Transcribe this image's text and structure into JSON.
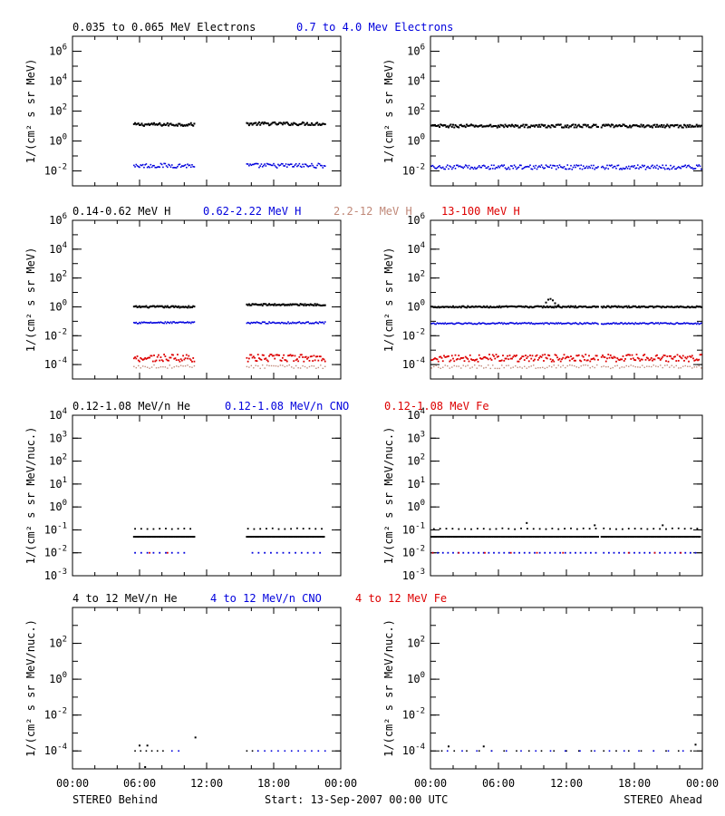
{
  "colors": {
    "black": "#000000",
    "blue": "#0000dd",
    "tan": "#c08878",
    "red": "#dd0000"
  },
  "footer": {
    "left": "STEREO Behind",
    "center": "Start: 13-Sep-2007 00:00 UTC",
    "right": "STEREO Ahead"
  },
  "x_ticks": [
    "00:00",
    "06:00",
    "12:00",
    "18:00",
    "00:00"
  ],
  "chart_data": [
    {
      "type": "scatter",
      "row": 0,
      "ylabel": "1/(cm² s sr MeV)",
      "ylim_log10": [
        -3,
        7
      ],
      "y_tick_exponents": [
        -2,
        0,
        2,
        4,
        6
      ],
      "legend": [
        {
          "text": "0.035 to 0.065 MeV Electrons",
          "color": "black"
        },
        {
          "text": "0.7 to 4.0 Mev Electrons",
          "color": "blue"
        }
      ],
      "panels": [
        {
          "name": "STEREO Behind",
          "series": [
            {
              "color": "black",
              "segments": [
                [
                  5.5,
                  10.9,
                  1.1
                ],
                [
                  15.6,
                  22.6,
                  1.15
                ]
              ],
              "jitter": 0.1,
              "step": 0.1,
              "size": 2
            },
            {
              "color": "blue",
              "segments": [
                [
                  5.5,
                  10.9,
                  -1.65
                ],
                [
                  15.6,
                  22.6,
                  -1.65
                ]
              ],
              "jitter": 0.15,
              "step": 0.1,
              "size": 1.6
            }
          ]
        },
        {
          "name": "STEREO Ahead",
          "series": [
            {
              "color": "black",
              "segments": [
                [
                  0.1,
                  14.8,
                  1.0
                ],
                [
                  15.1,
                  23.9,
                  1.0
                ]
              ],
              "jitter": 0.1,
              "step": 0.1,
              "size": 2
            },
            {
              "color": "blue",
              "segments": [
                [
                  0.1,
                  14.8,
                  -1.75
                ],
                [
                  15.1,
                  23.9,
                  -1.75
                ]
              ],
              "jitter": 0.15,
              "step": 0.1,
              "size": 1.6
            }
          ]
        }
      ]
    },
    {
      "type": "scatter",
      "row": 1,
      "ylabel": "1/(cm² s sr MeV)",
      "ylim_log10": [
        -5,
        6
      ],
      "y_tick_exponents": [
        -4,
        -2,
        0,
        2,
        4,
        6
      ],
      "legend": [
        {
          "text": "0.14-0.62 MeV H",
          "color": "black"
        },
        {
          "text": "0.62-2.22 MeV H",
          "color": "blue"
        },
        {
          "text": "2.2-12 MeV H",
          "color": "tan"
        },
        {
          "text": "13-100 MeV H",
          "color": "red"
        }
      ],
      "panels": [
        {
          "name": "STEREO Behind",
          "series": [
            {
              "color": "black",
              "segments": [
                [
                  5.5,
                  10.9,
                  0.0
                ],
                [
                  15.6,
                  22.6,
                  0.15
                ]
              ],
              "jitter": 0.06,
              "step": 0.1,
              "size": 2
            },
            {
              "color": "blue",
              "segments": [
                [
                  5.5,
                  10.9,
                  -1.1
                ],
                [
                  15.6,
                  22.6,
                  -1.1
                ]
              ],
              "jitter": 0.06,
              "step": 0.1,
              "size": 1.6
            },
            {
              "color": "tan",
              "segments": [
                [
                  5.5,
                  10.9,
                  -4.15
                ],
                [
                  15.6,
                  22.6,
                  -4.15
                ]
              ],
              "jitter": 0.12,
              "step": 0.2,
              "size": 1.4
            },
            {
              "color": "red",
              "segments": [
                [
                  5.5,
                  10.9,
                  -3.55
                ],
                [
                  15.6,
                  22.6,
                  -3.55
                ]
              ],
              "jitter": 0.25,
              "step": 0.1,
              "size": 1.8
            }
          ]
        },
        {
          "name": "STEREO Ahead",
          "series": [
            {
              "color": "black",
              "segments": [
                [
                  0.1,
                  14.8,
                  0.0
                ],
                [
                  15.1,
                  23.9,
                  0.0
                ]
              ],
              "jitter": 0.05,
              "step": 0.1,
              "size": 2
            },
            {
              "color": "blue",
              "segments": [
                [
                  0.1,
                  14.8,
                  -1.15
                ],
                [
                  15.1,
                  23.9,
                  -1.15
                ]
              ],
              "jitter": 0.05,
              "step": 0.1,
              "size": 1.6
            },
            {
              "color": "tan",
              "segments": [
                [
                  0.1,
                  14.8,
                  -4.15
                ],
                [
                  15.1,
                  23.9,
                  -4.15
                ]
              ],
              "jitter": 0.12,
              "step": 0.2,
              "size": 1.4
            },
            {
              "color": "red",
              "segments": [
                [
                  0.1,
                  14.8,
                  -3.55
                ],
                [
                  15.1,
                  23.9,
                  -3.55
                ]
              ],
              "jitter": 0.25,
              "step": 0.1,
              "size": 1.8
            }
          ],
          "extra_points": [
            {
              "color": "black",
              "x": 10.2,
              "y": 0.3
            },
            {
              "color": "black",
              "x": 10.4,
              "y": 0.5
            },
            {
              "color": "black",
              "x": 10.6,
              "y": 0.55
            },
            {
              "color": "black",
              "x": 10.8,
              "y": 0.45
            },
            {
              "color": "black",
              "x": 11.0,
              "y": 0.25
            },
            {
              "color": "black",
              "x": 11.3,
              "y": 0.12
            }
          ]
        }
      ]
    },
    {
      "type": "scatter",
      "row": 2,
      "ylabel": "1/(cm² s sr MeV/nuc.)",
      "ylim_log10": [
        -3,
        4
      ],
      "y_tick_exponents": [
        -3,
        -2,
        -1,
        0,
        1,
        2,
        3,
        4
      ],
      "legend": [
        {
          "text": "0.12-1.08 MeV/n He",
          "color": "black"
        },
        {
          "text": "0.12-1.08 MeV/n CNO",
          "color": "blue"
        },
        {
          "text": "0.12-1.08 MeV Fe",
          "color": "red"
        }
      ],
      "panels": [
        {
          "name": "STEREO Behind",
          "series": [
            {
              "color": "black",
              "segments": [
                [
                  5.5,
                  10.9,
                  -1.3
                ],
                [
                  15.6,
                  22.6,
                  -1.3
                ]
              ],
              "jitter": 0.0,
              "step": 0.15,
              "size": 2
            },
            {
              "color": "black",
              "segments": [
                [
                  5.6,
                  10.8,
                  -0.95
                ],
                [
                  15.7,
                  22.4,
                  -0.95
                ]
              ],
              "jitter": 0.02,
              "step": 0.55,
              "size": 1.8
            },
            {
              "color": "blue",
              "segments": [
                [
                  5.6,
                  10.4,
                  -2.0
                ],
                [
                  16.1,
                  22.6,
                  -2.0
                ]
              ],
              "jitter": 0.0,
              "step": 0.55,
              "size": 1.8
            },
            {
              "color": "red",
              "segments": [
                [
                  6.9,
                  8.6,
                  -2.0
                ]
              ],
              "jitter": 0.0,
              "step": 1.6,
              "size": 1.8
            }
          ]
        },
        {
          "name": "STEREO Ahead",
          "series": [
            {
              "color": "black",
              "segments": [
                [
                  0.1,
                  14.8,
                  -1.3
                ],
                [
                  15.1,
                  23.9,
                  -1.3
                ]
              ],
              "jitter": 0.0,
              "step": 0.15,
              "size": 2
            },
            {
              "color": "black",
              "segments": [
                [
                  0.3,
                  14.8,
                  -0.95
                ],
                [
                  15.3,
                  23.6,
                  -0.95
                ]
              ],
              "jitter": 0.02,
              "step": 0.55,
              "size": 1.8
            },
            {
              "color": "blue",
              "segments": [
                [
                  0.2,
                  14.8,
                  -2.0
                ],
                [
                  15.3,
                  23.6,
                  -2.0
                ]
              ],
              "jitter": 0.0,
              "step": 0.45,
              "size": 1.8
            },
            {
              "color": "red",
              "segments": [
                [
                  0.2,
                  13.5,
                  -2.0
                ],
                [
                  17.5,
                  23.0,
                  -2.0
                ]
              ],
              "jitter": 0.0,
              "step": 2.3,
              "size": 1.8
            }
          ],
          "extra_points": [
            {
              "color": "black",
              "x": 14.5,
              "y": -0.8
            },
            {
              "color": "black",
              "x": 20.5,
              "y": -0.8
            },
            {
              "color": "black",
              "x": 8.5,
              "y": -0.7
            }
          ]
        }
      ]
    },
    {
      "type": "scatter",
      "row": 3,
      "ylabel": "1/(cm² s sr MeV/nuc.)",
      "ylim_log10": [
        -5,
        4
      ],
      "y_tick_exponents": [
        -4,
        -2,
        0,
        2
      ],
      "legend": [
        {
          "text": "4 to 12 MeV/n He",
          "color": "black"
        },
        {
          "text": "4 to 12 MeV/n CNO",
          "color": "blue"
        },
        {
          "text": "4 to 12 MeV Fe",
          "color": "red"
        }
      ],
      "panels": [
        {
          "name": "STEREO Behind",
          "series": [
            {
              "color": "black",
              "segments": [
                [
                  5.6,
                  8.2,
                  -4.0
                ],
                [
                  15.6,
                  16.6,
                  -4.0
                ]
              ],
              "jitter": 0.0,
              "step": 0.5,
              "size": 1.6
            },
            {
              "color": "blue",
              "segments": [
                [
                  8.9,
                  10.0,
                  -4.0
                ],
                [
                  16.6,
                  22.6,
                  -4.0
                ]
              ],
              "jitter": 0.0,
              "step": 0.6,
              "size": 1.6
            }
          ],
          "extra_points": [
            {
              "color": "black",
              "x": 6.0,
              "y": -3.7
            },
            {
              "color": "black",
              "x": 6.7,
              "y": -3.7
            },
            {
              "color": "black",
              "x": 11.0,
              "y": -3.25
            },
            {
              "color": "black",
              "x": 6.5,
              "y": -4.9
            }
          ]
        },
        {
          "name": "STEREO Ahead",
          "series": [
            {
              "color": "black",
              "segments": [
                [
                  1.0,
                  23.8,
                  -4.0
                ]
              ],
              "jitter": 0.0,
              "step": 1.1,
              "size": 1.6
            },
            {
              "color": "blue",
              "segments": [
                [
                  1.5,
                  23.5,
                  -4.0
                ]
              ],
              "jitter": 0.0,
              "step": 1.3,
              "size": 1.6
            }
          ],
          "extra_points": [
            {
              "color": "black",
              "x": 1.6,
              "y": -3.75
            },
            {
              "color": "black",
              "x": 4.7,
              "y": -3.75
            },
            {
              "color": "black",
              "x": 23.4,
              "y": -3.65
            }
          ]
        }
      ]
    }
  ]
}
